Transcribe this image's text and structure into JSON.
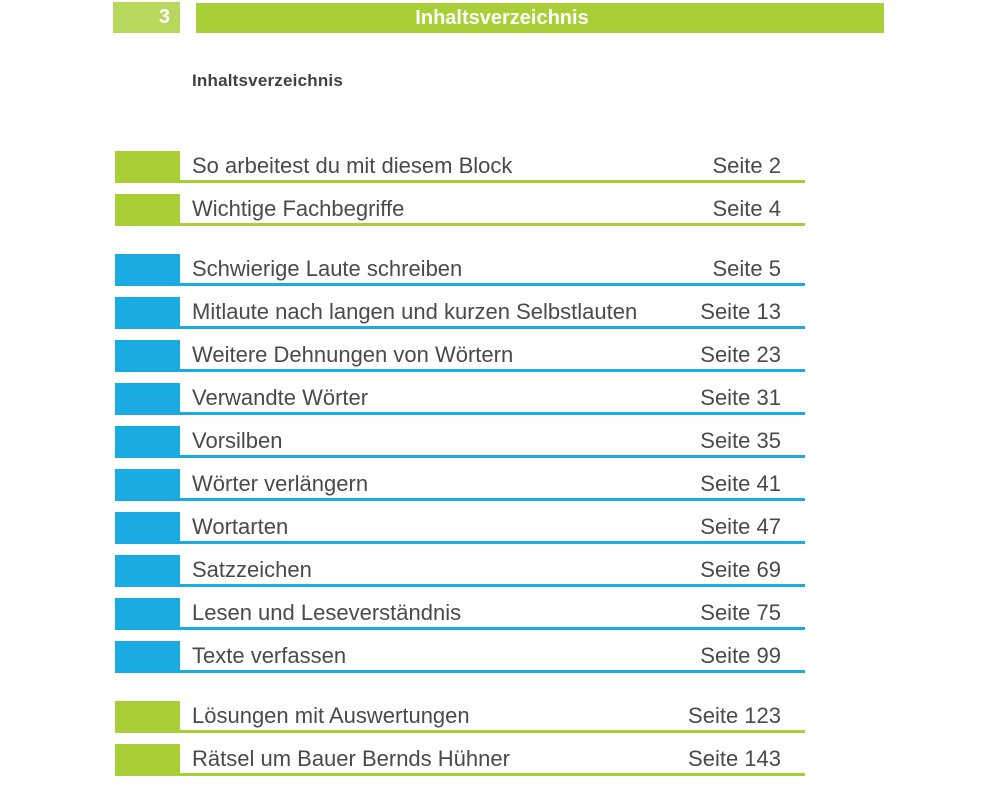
{
  "header": {
    "page_number": "3",
    "title": "Inhaltsverzeichnis"
  },
  "heading": "Inhaltsverzeichnis",
  "colors": {
    "green": "#a8d036",
    "light_green_tab": "#b7d75d",
    "blue": "#1babe3",
    "text": "#4a4a4c"
  },
  "toc": {
    "items": [
      {
        "title": "So arbeitest du mit diesem Block",
        "page": "Seite 2",
        "color": "green"
      },
      {
        "title": "Wichtige Fachbegriffe",
        "page": "Seite 4",
        "color": "green"
      },
      {
        "title": "Schwierige Laute schreiben",
        "page": "Seite 5",
        "color": "blue"
      },
      {
        "title": "Mitlaute nach langen und kurzen Selbstlauten",
        "page": "Seite 13",
        "color": "blue"
      },
      {
        "title": "Weitere Dehnungen von Wörtern",
        "page": "Seite 23",
        "color": "blue"
      },
      {
        "title": "Verwandte Wörter",
        "page": "Seite 31",
        "color": "blue"
      },
      {
        "title": "Vorsilben",
        "page": "Seite 35",
        "color": "blue"
      },
      {
        "title": "Wörter verlängern",
        "page": "Seite 41",
        "color": "blue"
      },
      {
        "title": "Wortarten",
        "page": "Seite 47",
        "color": "blue"
      },
      {
        "title": "Satzzeichen",
        "page": "Seite 69",
        "color": "blue"
      },
      {
        "title": "Lesen und Leseverständnis",
        "page": "Seite 75",
        "color": "blue"
      },
      {
        "title": "Texte verfassen",
        "page": "Seite 99",
        "color": "blue"
      },
      {
        "title": "Lösungen mit Auswertungen",
        "page": "Seite 123",
        "color": "green"
      },
      {
        "title": "Rätsel um Bauer Bernds Hühner",
        "page": "Seite 143",
        "color": "green"
      }
    ]
  }
}
